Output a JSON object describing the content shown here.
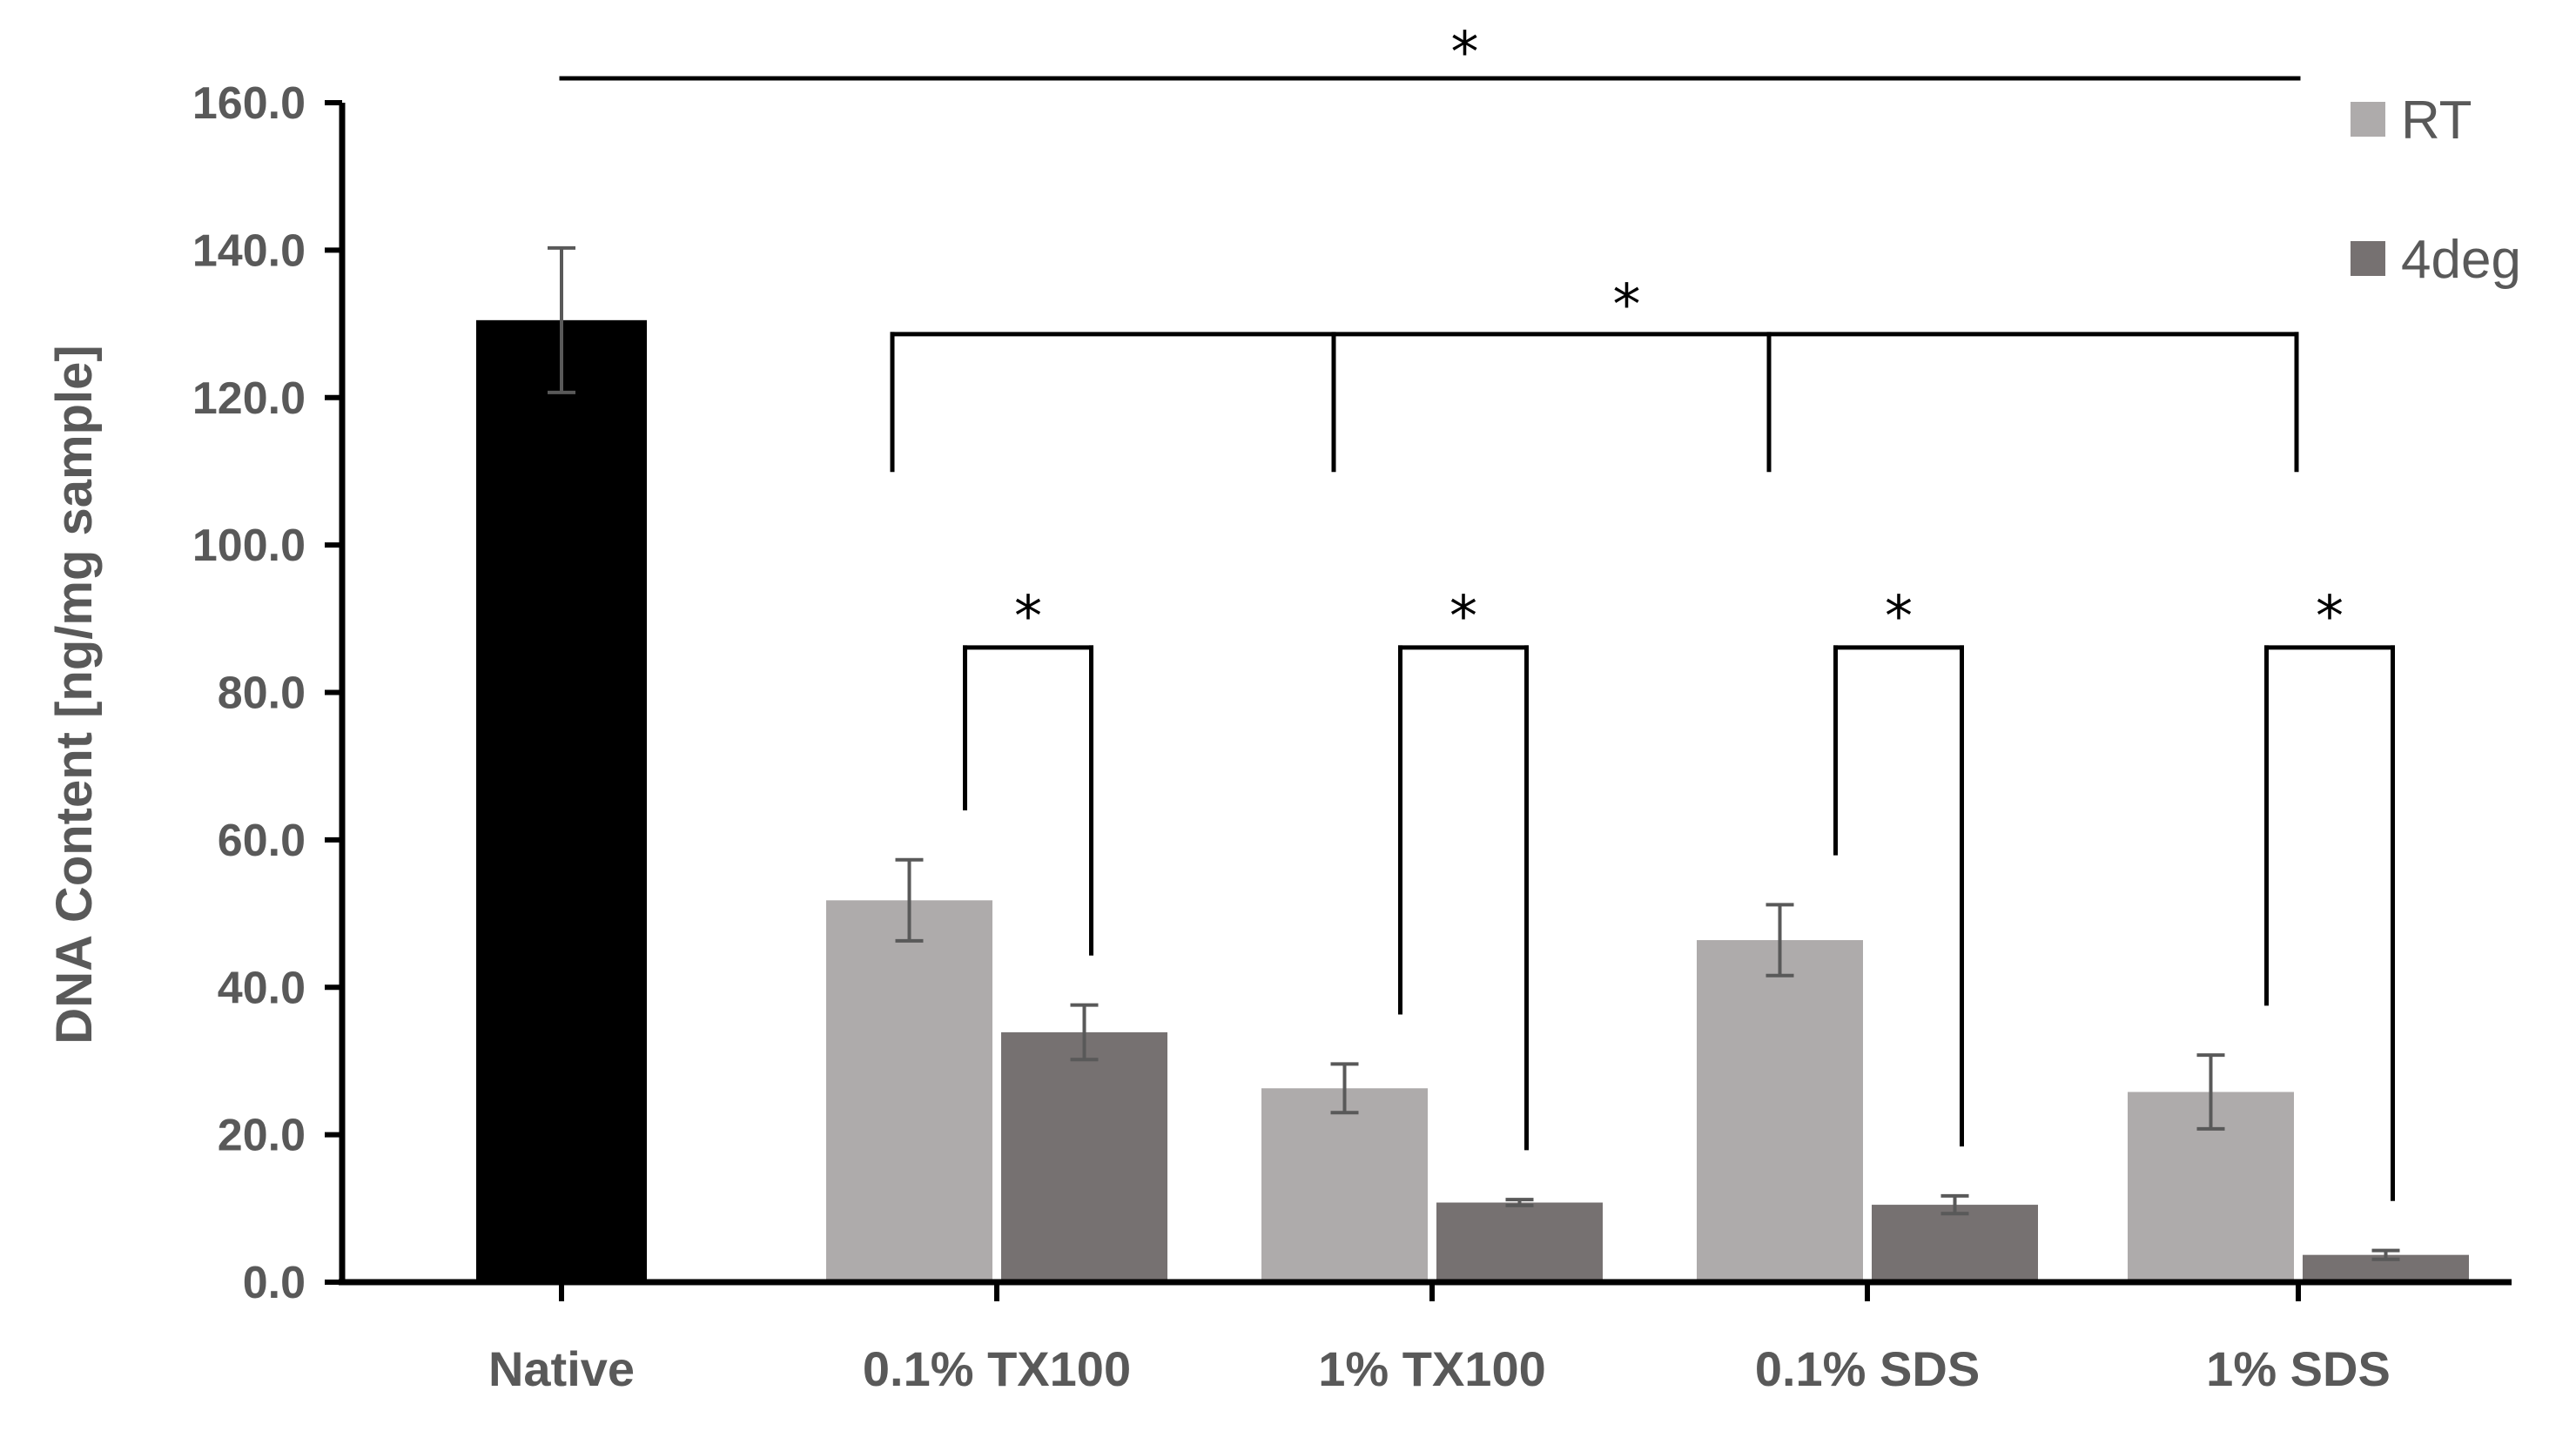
{
  "chart_data": {
    "type": "bar",
    "title": "",
    "xlabel": "",
    "ylabel": "DNA Content [ng/mg sample]",
    "ylim": [
      0,
      160
    ],
    "yticks": [
      0,
      20,
      40,
      60,
      80,
      100,
      120,
      140,
      160
    ],
    "ytick_labels": [
      "0.0",
      "20.0",
      "40.0",
      "60.0",
      "80.0",
      "100.0",
      "120.0",
      "140.0",
      "160.0"
    ],
    "categories": [
      "Native",
      "0.1% TX100",
      "1% TX100",
      "0.1% SDS",
      "1% SDS"
    ],
    "native": {
      "value": 130.5,
      "error": 9.8,
      "color": "#000000"
    },
    "series": [
      {
        "name": "RT",
        "color": "#AEABAB",
        "values": [
          null,
          51.8,
          26.3,
          46.4,
          25.8
        ],
        "errors": [
          null,
          5.5,
          3.3,
          4.8,
          5.0
        ]
      },
      {
        "name": "4deg",
        "color": "#767171",
        "values": [
          null,
          33.9,
          10.8,
          10.5,
          3.7
        ],
        "errors": [
          null,
          3.7,
          0.4,
          1.2,
          0.6
        ]
      }
    ],
    "legend": {
      "position": "top-right",
      "entries": [
        "RT",
        "4deg"
      ]
    },
    "significance_marker": "*",
    "annotations": [
      {
        "type": "span",
        "label": "*",
        "from": "Native",
        "to": "1% SDS"
      },
      {
        "type": "multi-bracket",
        "label": "*",
        "groups": [
          "0.1% TX100",
          "1% TX100",
          "0.1% SDS",
          "1% SDS"
        ]
      },
      {
        "type": "pair-bracket",
        "label": "*",
        "group": "0.1% TX100"
      },
      {
        "type": "pair-bracket",
        "label": "*",
        "group": "1% TX100"
      },
      {
        "type": "pair-bracket",
        "label": "*",
        "group": "0.1% SDS"
      },
      {
        "type": "pair-bracket",
        "label": "*",
        "group": "1% SDS"
      }
    ]
  }
}
